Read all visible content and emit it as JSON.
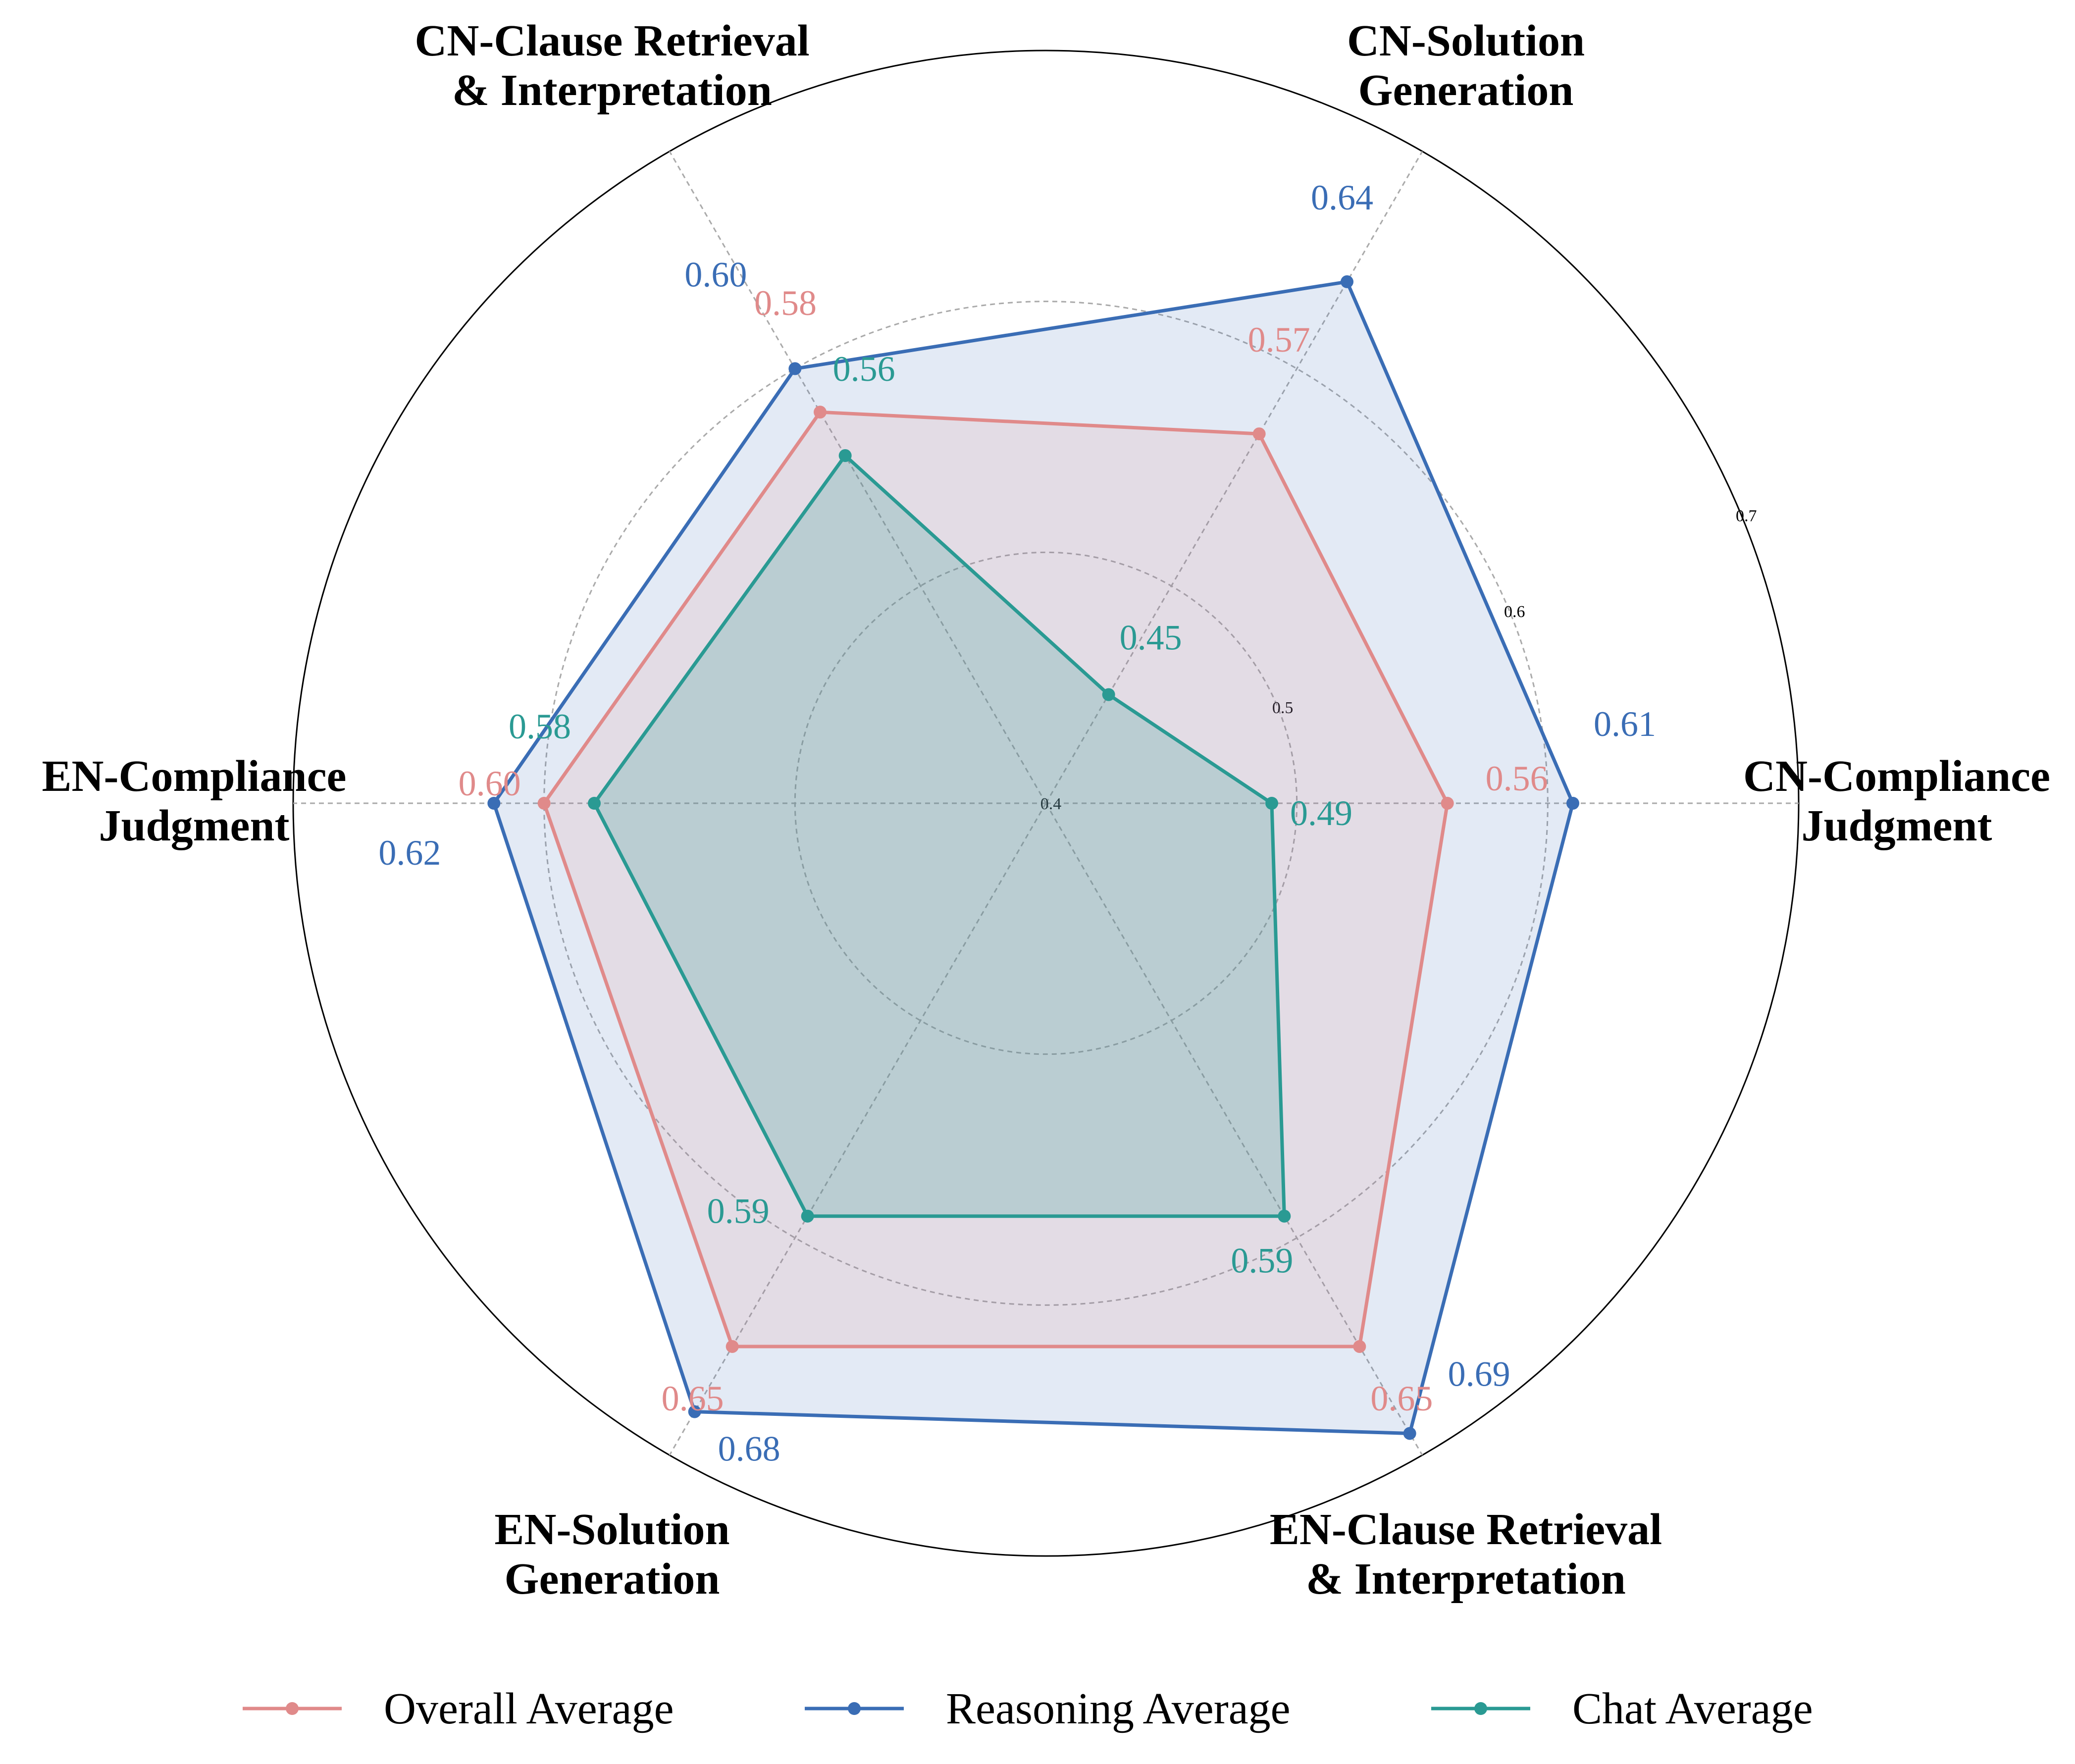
{
  "chart_data": {
    "type": "radar",
    "categories": [
      [
        "CN-Compliance",
        "Judgment"
      ],
      [
        "CN-Solution",
        "Generation"
      ],
      [
        "CN-Clause Retrieval",
        "& Interpretation"
      ],
      [
        "EN-Compliance",
        "Judgment"
      ],
      [
        "EN-Solution",
        "Generation"
      ],
      [
        "EN-Clause Retrieval",
        "& Interpretation"
      ]
    ],
    "rlim": [
      0.4,
      0.7
    ],
    "rticks": [
      "0.4",
      "0.5",
      "0.6",
      "0.7"
    ],
    "rtick_values": [
      0.4,
      0.5,
      0.6,
      0.7
    ],
    "grid": true,
    "legend_position": "bottom",
    "series": [
      {
        "name": "Overall Average",
        "color": "#e08a8a",
        "values": [
          0.56,
          0.57,
          0.58,
          0.6,
          0.65,
          0.65
        ],
        "labels": [
          "0.56",
          "0.57",
          "0.58",
          "0.60",
          "0.65",
          "0.65"
        ]
      },
      {
        "name": "Reasoning Average",
        "color": "#3a6db5",
        "values": [
          0.61,
          0.64,
          0.6,
          0.62,
          0.68,
          0.69
        ],
        "labels": [
          "0.61",
          "0.64",
          "0.60",
          "0.62",
          "0.68",
          "0.69"
        ]
      },
      {
        "name": "Chat Average",
        "color": "#2a9a93",
        "values": [
          0.49,
          0.45,
          0.56,
          0.58,
          0.59,
          0.59
        ],
        "labels": [
          "0.49",
          "0.45",
          "0.56",
          "0.58",
          "0.59",
          "0.59"
        ]
      }
    ]
  }
}
